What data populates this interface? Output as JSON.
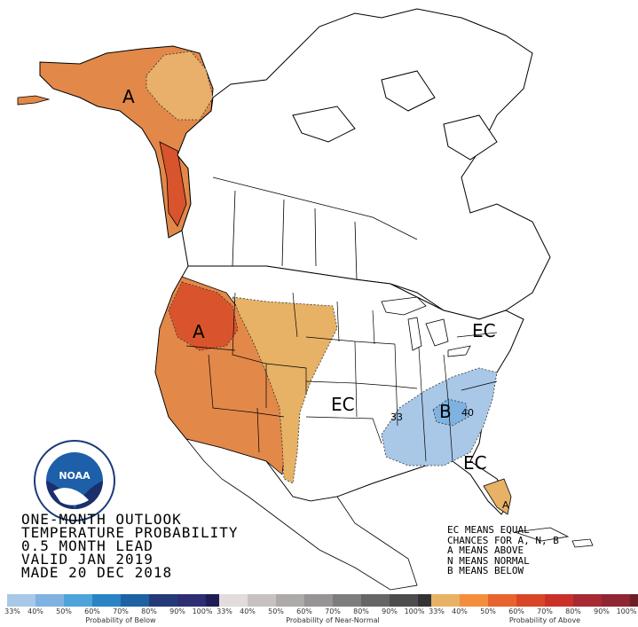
{
  "title_lines": [
    "ONE-MONTH OUTLOOK",
    "TEMPERATURE PROBABILITY",
    "0.5 MONTH LEAD",
    "VALID JAN 2019",
    "MADE 20 DEC 2018"
  ],
  "key_lines": [
    "EC MEANS EQUAL",
    "CHANCES FOR A, N, B",
    "A MEANS ABOVE",
    "N MEANS NORMAL",
    "B MEANS BELOW"
  ],
  "region_labels": {
    "alaska": "A",
    "northwest": "A",
    "central": "EC",
    "northeast": "EC",
    "southeast": "B",
    "florida_ec": "EC",
    "florida_a": "A",
    "contour_33": "33",
    "contour_40": "40"
  },
  "logo": {
    "text": "NOAA"
  },
  "colors": {
    "below": [
      "#a9c8e8",
      "#7fb2e0",
      "#4ea3da",
      "#2a83c4",
      "#1d62a3",
      "#253a78",
      "#2c2d73",
      "#1f1c56"
    ],
    "near_normal": [
      "#e3dcdc",
      "#c7c1c1",
      "#aeaaaa",
      "#969494",
      "#7e7d7d",
      "#666666",
      "#4d4d4d",
      "#333333"
    ],
    "above": [
      "#e7b266",
      "#f48e3f",
      "#e7642f",
      "#d84627",
      "#cb2f2a",
      "#a62933",
      "#8e2633",
      "#6b1f26"
    ],
    "alaska_fill": "#e28849",
    "alaska_inner": "#e8b06b",
    "west_fill": "#e28849",
    "west_dark": "#d9542c",
    "plains_fill": "#e7b266",
    "southeast_fill": "#a9c8e8",
    "southeast_inner": "#7fb2e0"
  },
  "legends": [
    {
      "title": "Probability of Below",
      "ticks": [
        "33%",
        "40%",
        "50%",
        "60%",
        "70%",
        "80%",
        "90%",
        "100%"
      ]
    },
    {
      "title": "Probability of Near-Normal",
      "ticks": [
        "33%",
        "40%",
        "50%",
        "60%",
        "70%",
        "80%",
        "90%",
        "100%"
      ]
    },
    {
      "title": "Probability of Above",
      "ticks": [
        "33%",
        "40%",
        "50%",
        "60%",
        "70%",
        "80%",
        "90%",
        "100%"
      ]
    }
  ]
}
